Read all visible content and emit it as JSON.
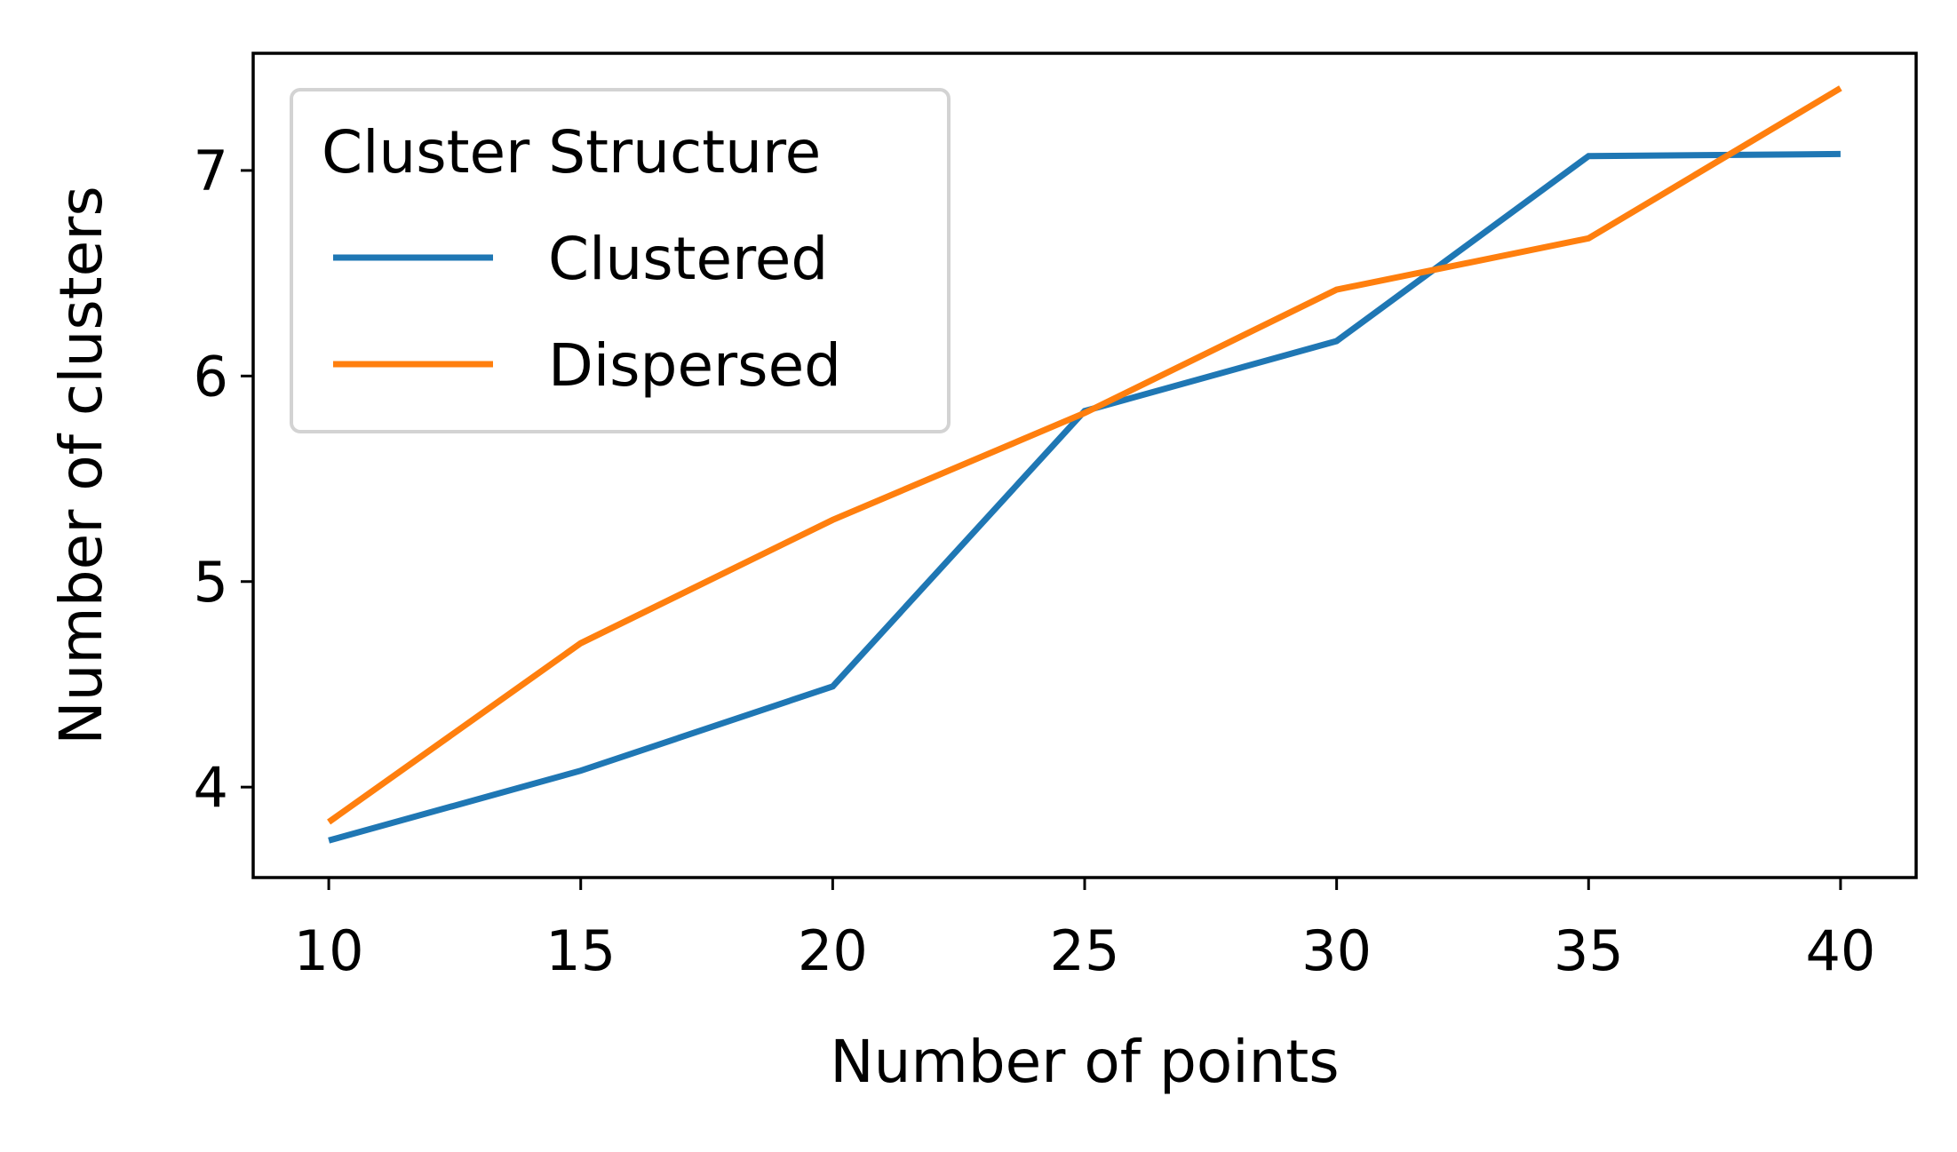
{
  "chart_data": {
    "type": "line",
    "xlabel": "Number of points",
    "ylabel": "Number of clusters",
    "x": [
      10,
      15,
      20,
      25,
      30,
      35,
      40
    ],
    "xlim": [
      8.5,
      41.5
    ],
    "ylim": [
      3.56,
      7.57
    ],
    "xticks": [
      10,
      15,
      20,
      25,
      30,
      35,
      40
    ],
    "yticks": [
      4,
      5,
      6,
      7
    ],
    "grid": false,
    "legend": {
      "title": "Cluster Structure",
      "placement": "top-left"
    },
    "series": [
      {
        "name": "Clustered",
        "color": "#1f77b4",
        "values": [
          3.74,
          4.08,
          4.49,
          5.83,
          6.17,
          7.07,
          7.08
        ]
      },
      {
        "name": "Dispersed",
        "color": "#ff7f0e",
        "values": [
          3.83,
          4.7,
          5.3,
          5.82,
          6.42,
          6.67,
          7.4
        ]
      }
    ]
  }
}
